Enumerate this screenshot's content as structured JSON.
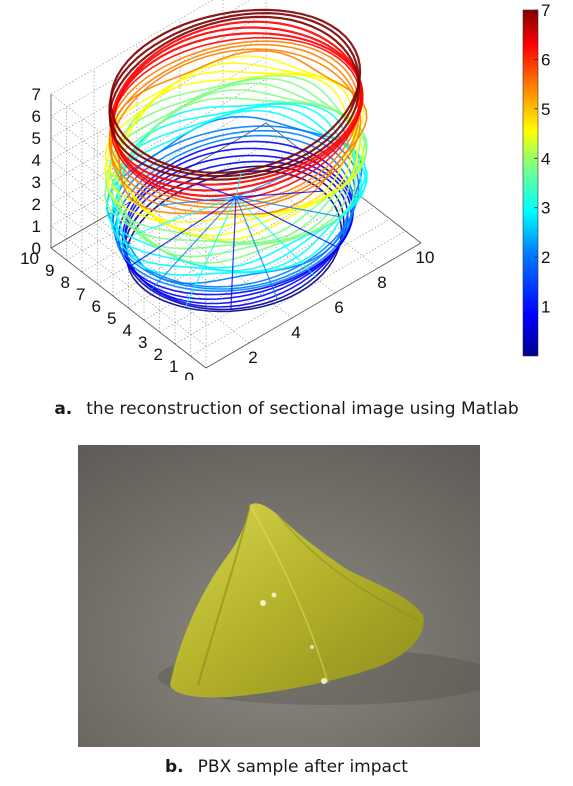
{
  "panel_a": {
    "label": "a.",
    "caption": "the reconstruction of sectional image using Matlab",
    "z_ticks": [
      "0",
      "1",
      "2",
      "3",
      "4",
      "5",
      "6",
      "7"
    ],
    "y_ticks": [
      "10",
      "9",
      "8",
      "7",
      "6",
      "5",
      "4",
      "3",
      "2",
      "1",
      "0"
    ],
    "x_ticks": [
      "2",
      "4",
      "6",
      "8",
      "10"
    ],
    "colorbar_ticks": [
      "1",
      "2",
      "3",
      "4",
      "5",
      "6",
      "7"
    ],
    "colormap": [
      "#00008f",
      "#0000ff",
      "#007fff",
      "#00ffff",
      "#7fff7f",
      "#ffff00",
      "#ff7f00",
      "#ff0000",
      "#7f0000"
    ]
  },
  "panel_b": {
    "label": "b.",
    "caption": "PBX sample after impact",
    "sample_color": "#c6c53a"
  },
  "chart_data": {
    "type": "scatter",
    "subtype": "3d-surface-contours",
    "title": "",
    "xlabel": "",
    "ylabel": "",
    "zlabel": "",
    "xlim": [
      0,
      10
    ],
    "ylim": [
      0,
      10
    ],
    "zlim": [
      0,
      7
    ],
    "colorbar": {
      "range": [
        0,
        7
      ],
      "colormap": "jet"
    },
    "grid": true,
    "series": [
      {
        "description_values": [
          0,
          1,
          2,
          3,
          4,
          5,
          6,
          7
        ]
      }
    ]
  }
}
